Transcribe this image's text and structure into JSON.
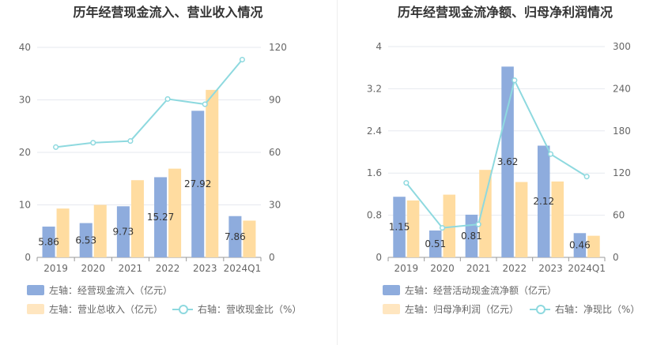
{
  "colors": {
    "inflow": "#8EACDD",
    "revenue": "#FFDCA0",
    "ratio": "#8ED9DF"
  },
  "chart_data": [
    {
      "type": "bar",
      "title": "历年经营现金流入、营业收入情况",
      "categories": [
        "2019",
        "2020",
        "2021",
        "2022",
        "2023",
        "2024Q1"
      ],
      "ylim_left": [
        0,
        40
      ],
      "yticks_left": [
        "0",
        "10",
        "20",
        "30",
        "40"
      ],
      "ylim_right": [
        0,
        120
      ],
      "yticks_right": [
        "0",
        "30",
        "60",
        "90",
        "120"
      ],
      "series": [
        {
          "name": "左轴：经营现金流入（亿元）",
          "axis": "left",
          "kind": "bar",
          "values": [
            5.86,
            6.53,
            9.73,
            15.27,
            27.92,
            7.86
          ],
          "labels": [
            "5.86",
            "6.53",
            "9.73",
            "15.27",
            "27.92",
            "7.86"
          ]
        },
        {
          "name": "左轴：营业总收入（亿元）",
          "axis": "left",
          "kind": "bar",
          "values": [
            9.3,
            10.0,
            14.7,
            16.9,
            31.9,
            7.0
          ]
        },
        {
          "name": "右轴：营收现金比（%）",
          "axis": "right",
          "kind": "line",
          "values": [
            63,
            65.5,
            66.5,
            90.5,
            87.5,
            113
          ]
        }
      ],
      "legend": "bottom",
      "grid": true
    },
    {
      "type": "bar",
      "title": "历年经营现金流净额、归母净利润情况",
      "categories": [
        "2019",
        "2020",
        "2021",
        "2022",
        "2023",
        "2024Q1"
      ],
      "ylim_left": [
        0,
        4
      ],
      "yticks_left": [
        "0",
        "0.8",
        "1.6",
        "2.4",
        "3.2",
        "4"
      ],
      "ylim_right": [
        0,
        300
      ],
      "yticks_right": [
        "0",
        "60",
        "120",
        "180",
        "240",
        "300"
      ],
      "series": [
        {
          "name": "左轴：经营活动现金流净额（亿元）",
          "axis": "left",
          "kind": "bar",
          "values": [
            1.15,
            0.51,
            0.81,
            3.62,
            2.12,
            0.46
          ],
          "labels": [
            "1.15",
            "0.51",
            "0.81",
            "3.62",
            "2.12",
            "0.46"
          ]
        },
        {
          "name": "左轴：归母净利润（亿元）",
          "axis": "left",
          "kind": "bar",
          "values": [
            1.08,
            1.19,
            1.66,
            1.43,
            1.44,
            0.41
          ]
        },
        {
          "name": "右轴：净现比（%）",
          "axis": "right",
          "kind": "line",
          "values": [
            106,
            42,
            47,
            252,
            147,
            115
          ]
        }
      ],
      "legend": "bottom",
      "grid": true
    }
  ]
}
